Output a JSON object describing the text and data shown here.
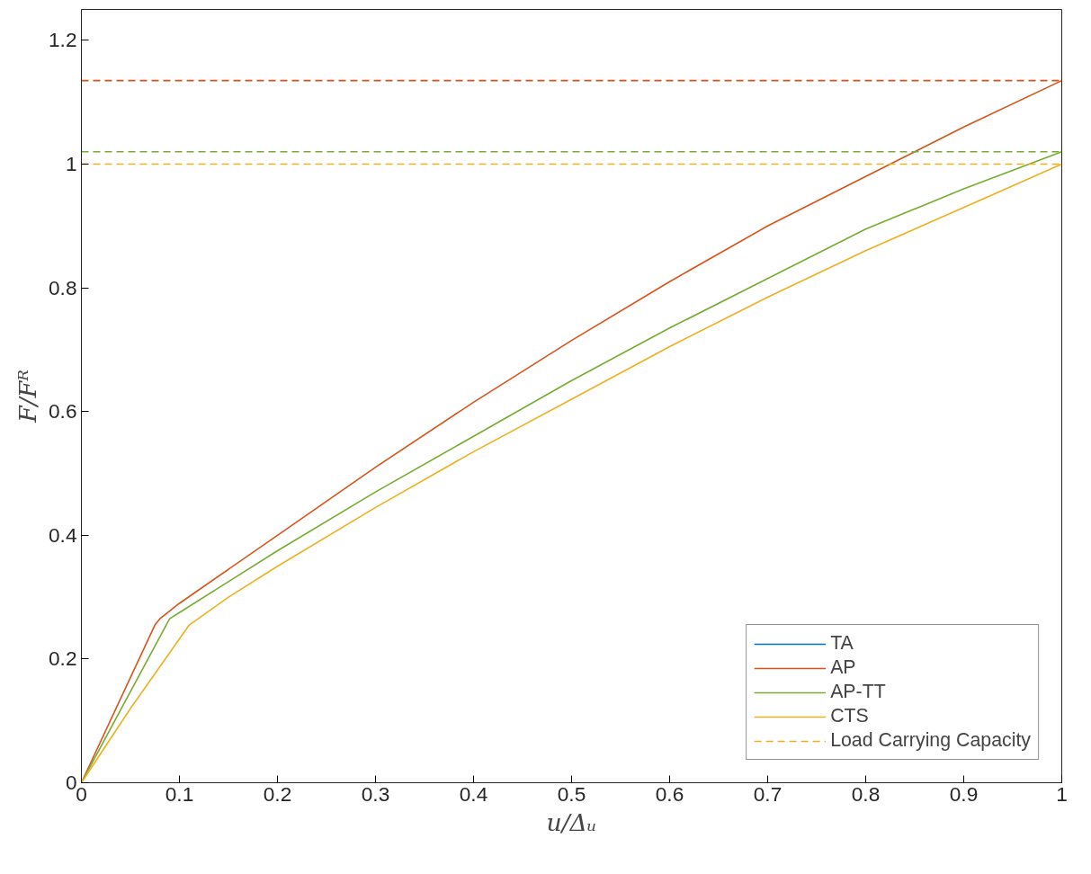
{
  "chart_data": {
    "type": "line",
    "xlabel": "u/Δᵤ",
    "ylabel": "F/Fᴿ",
    "xlim": [
      0,
      1
    ],
    "ylim": [
      0,
      1.25
    ],
    "xticks": [
      0,
      0.1,
      0.2,
      0.3,
      0.4,
      0.5,
      0.6,
      0.7,
      0.8,
      0.9,
      1
    ],
    "yticks": [
      0,
      0.2,
      0.4,
      0.6,
      0.8,
      1,
      1.2
    ],
    "grid": false,
    "legend": "bottom right",
    "line_style": "solid",
    "marker": "none",
    "series": [
      {
        "name": "TA",
        "color": "#0072bd"
      },
      {
        "name": "AP",
        "color": "#d95319",
        "x": [
          0,
          0.075,
          0.08,
          0.1,
          0.2,
          0.3,
          0.4,
          0.5,
          0.6,
          0.7,
          0.8,
          0.85,
          0.9,
          1.0
        ],
        "values": [
          0,
          0.255,
          0.265,
          0.29,
          0.4,
          0.51,
          0.615,
          0.715,
          0.81,
          0.9,
          0.98,
          1.02,
          1.06,
          1.135
        ]
      },
      {
        "name": "AP-TT",
        "color": "#77ac30",
        "x": [
          0,
          0.09,
          0.1,
          0.2,
          0.3,
          0.4,
          0.5,
          0.6,
          0.7,
          0.8,
          0.9,
          1.0
        ],
        "values": [
          0,
          0.265,
          0.275,
          0.375,
          0.47,
          0.56,
          0.65,
          0.735,
          0.815,
          0.895,
          0.96,
          1.02
        ]
      },
      {
        "name": "CTS",
        "color": "#edb120",
        "x": [
          0,
          0.05,
          0.09,
          0.11,
          0.15,
          0.2,
          0.3,
          0.4,
          0.5,
          0.6,
          0.7,
          0.8,
          0.9,
          1.0
        ],
        "values": [
          0,
          0.12,
          0.21,
          0.255,
          0.3,
          0.35,
          0.445,
          0.535,
          0.62,
          0.705,
          0.785,
          0.86,
          0.93,
          1.0
        ]
      }
    ],
    "ref_lines": [
      {
        "axis": "y",
        "value": 1.135,
        "label": null,
        "color": "#d95319",
        "line_style": "dashed"
      },
      {
        "axis": "y",
        "value": 1.02,
        "label": null,
        "color": "#77ac30",
        "line_style": "dashed"
      },
      {
        "axis": "y",
        "value": 1.0,
        "label": "Load Carrying Capacity",
        "color": "#edb120",
        "line_style": "dashed"
      }
    ]
  }
}
